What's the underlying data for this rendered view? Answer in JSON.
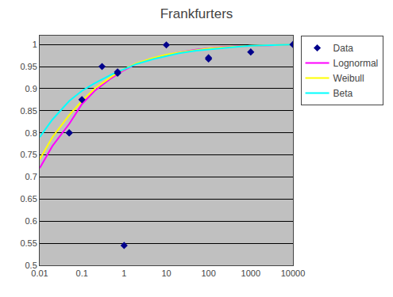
{
  "chart_data": {
    "type": "line",
    "title": "Frankfurters",
    "log": "x",
    "grid": "y",
    "legend": "right",
    "xlim": [
      0.01,
      10000
    ],
    "xticks": [
      0.01,
      0.1,
      1,
      10,
      100,
      1000,
      10000
    ],
    "ylim": [
      0.5,
      1.02
    ],
    "yticks": [
      0.5,
      0.55,
      0.6,
      0.65,
      0.7,
      0.75,
      0.8,
      0.85,
      0.9,
      0.95,
      1.0
    ],
    "series": [
      {
        "name": "Data",
        "type": "scatter",
        "marker": "diamond",
        "color": "#00008B",
        "x": [
          0.05,
          0.05,
          0.1,
          0.3,
          0.7,
          0.7,
          1.0,
          10.0,
          100.0,
          100.0,
          1000.0,
          10000.0
        ],
        "values": [
          0.8,
          0.8,
          0.875,
          0.95,
          0.935,
          0.938,
          0.545,
          0.999,
          0.967,
          0.97,
          0.983,
          1.0
        ]
      },
      {
        "name": "Lognormal",
        "type": "line",
        "line_style": "solid",
        "color": "#ff00ff",
        "x": [
          0.01,
          0.02,
          0.05,
          0.1,
          0.2,
          0.5,
          1,
          2,
          5,
          10,
          20,
          50,
          100,
          200,
          500,
          1000,
          2000,
          5000,
          10000
        ],
        "values": [
          0.72,
          0.77,
          0.82,
          0.865,
          0.895,
          0.924,
          0.942,
          0.957,
          0.969,
          0.976,
          0.982,
          0.988,
          0.991,
          0.994,
          0.996,
          0.997,
          0.998,
          0.999,
          1.0
        ]
      },
      {
        "name": "Weibull",
        "type": "line",
        "line_style": "solid",
        "color": "#ffff00",
        "x": [
          0.01,
          0.02,
          0.05,
          0.1,
          0.2,
          0.5,
          1,
          2,
          5,
          10,
          20,
          50,
          100,
          200,
          500,
          1000,
          2000,
          5000,
          10000
        ],
        "values": [
          0.74,
          0.79,
          0.84,
          0.872,
          0.9,
          0.927,
          0.944,
          0.958,
          0.97,
          0.977,
          0.982,
          0.987,
          0.991,
          0.993,
          0.996,
          0.997,
          0.998,
          0.999,
          1.0
        ]
      },
      {
        "name": "Beta",
        "type": "line",
        "line_style": "solid",
        "color": "#00ffff",
        "x": [
          0.01,
          0.02,
          0.05,
          0.1,
          0.2,
          0.5,
          1,
          2,
          5,
          10,
          20,
          50,
          100,
          200,
          500,
          1000,
          2000,
          5000,
          10000
        ],
        "values": [
          0.79,
          0.83,
          0.872,
          0.895,
          0.912,
          0.932,
          0.944,
          0.956,
          0.967,
          0.974,
          0.98,
          0.986,
          0.989,
          0.992,
          0.995,
          0.997,
          0.998,
          0.999,
          1.0
        ]
      }
    ]
  }
}
